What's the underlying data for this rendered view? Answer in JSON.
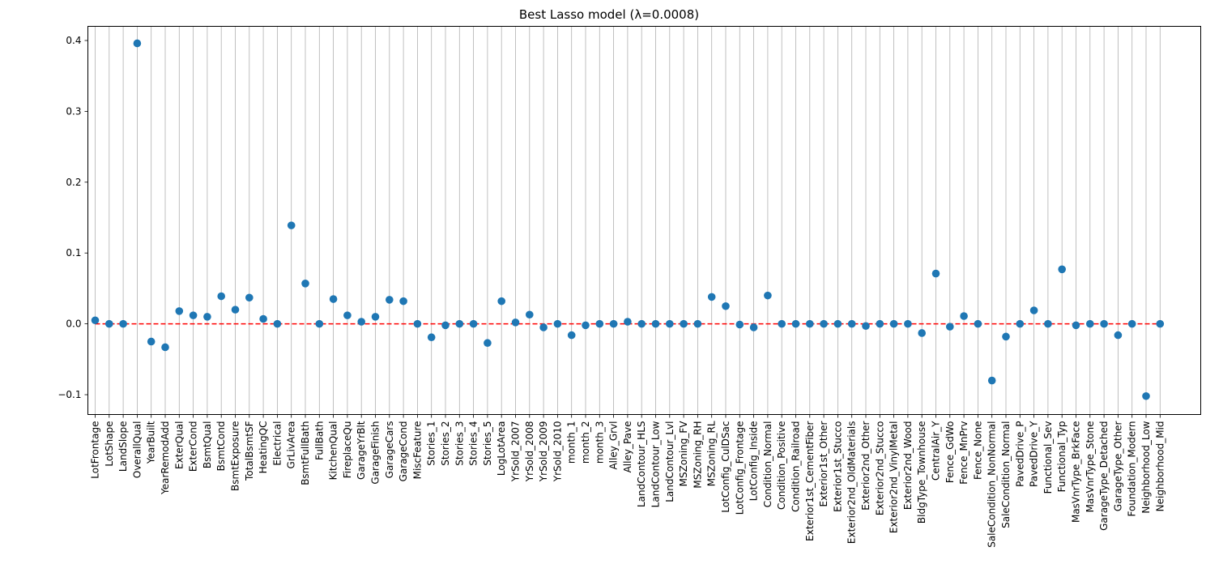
{
  "chart_data": {
    "type": "scatter",
    "title": "Best Lasso model (λ=0.0008)",
    "xlabel": "",
    "ylabel": "",
    "ylim": [
      -0.128,
      0.42
    ],
    "yticks": [
      -0.1,
      0.0,
      0.1,
      0.2,
      0.3,
      0.4
    ],
    "ytick_labels": [
      "−0.1",
      "0.0",
      "0.1",
      "0.2",
      "0.3",
      "0.4"
    ],
    "grid": "vertical",
    "reference_line": {
      "y": 0.0,
      "color": "#ff0000",
      "style": "dashed"
    },
    "point_color": "#1f77b4",
    "categories": [
      "LotFrontage",
      "LotShape",
      "LandSlope",
      "OverallQual",
      "YearBuilt",
      "YearRemodAdd",
      "ExterQual",
      "ExterCond",
      "BsmtQual",
      "BsmtCond",
      "BsmtExposure",
      "TotalBsmtSF",
      "HeatingQC",
      "Electrical",
      "GrLivArea",
      "BsmtFullBath",
      "FullBath",
      "KitchenQual",
      "FireplaceQu",
      "GarageYrBlt",
      "GarageFinish",
      "GarageCars",
      "GarageCond",
      "MiscFeature",
      "Stories_1",
      "Stories_2",
      "Stories_3",
      "Stories_4",
      "Stories_5",
      "LogLotArea",
      "YrSold_2007",
      "YrSold_2008",
      "YrSold_2009",
      "YrSold_2010",
      "month_1",
      "month_2",
      "month_3",
      "Alley_Grvl",
      "Alley_Pave",
      "LandContour_HLS",
      "LandContour_Low",
      "LandContour_Lvl",
      "MSZoning_FV",
      "MSZoning_RH",
      "MSZoning_RL",
      "LotConfig_CulDSac",
      "LotConfig_Frontage",
      "LotConfig_Inside",
      "Condition_Normal",
      "Condition_Positive",
      "Condition_Railroad",
      "Exterior1st_CementFiber",
      "Exterior1st_Other",
      "Exterior1st_Stucco",
      "Exterior2nd_OldMaterials",
      "Exterior2nd_Other",
      "Exterior2nd_Stucco",
      "Exterior2nd_VinylMetal",
      "Exterior2nd_Wood",
      "BldgType_Townhouse",
      "CentralAir_Y",
      "Fence_GdWo",
      "Fence_MnPrv",
      "Fence_None",
      "SaleCondition_NonNormal",
      "SaleCondition_Normal",
      "PavedDrive_P",
      "PavedDrive_Y",
      "Functional_Sev",
      "Functional_Typ",
      "MasVnrType_BrkFace",
      "MasVnrType_Stone",
      "GarageType_Detached",
      "GarageType_Other",
      "Foundation_Modern",
      "Neighborhood_Low",
      "Neighborhood_Mid"
    ],
    "values": [
      0.005,
      0.0,
      0.0,
      0.396,
      -0.025,
      -0.033,
      0.018,
      0.012,
      0.01,
      0.039,
      0.02,
      0.037,
      0.007,
      0.0,
      0.139,
      0.057,
      0.0,
      0.035,
      0.012,
      0.003,
      0.01,
      0.034,
      0.032,
      0.0,
      -0.019,
      -0.002,
      0.0,
      0.0,
      -0.027,
      0.032,
      0.002,
      0.013,
      -0.005,
      0.0,
      -0.016,
      -0.002,
      0.0,
      0.0,
      0.003,
      0.0,
      0.0,
      0.0,
      0.0,
      0.0,
      0.038,
      0.025,
      -0.001,
      -0.005,
      0.04,
      0.0,
      0.0,
      0.0,
      0.0,
      0.0,
      0.0,
      -0.003,
      0.0,
      0.0,
      0.0,
      -0.013,
      0.071,
      -0.004,
      0.011,
      0.0,
      -0.08,
      -0.018,
      0.0,
      0.019,
      0.0,
      0.077,
      -0.002,
      0.0,
      0.0,
      -0.016,
      0.0,
      -0.102,
      0.0
    ]
  }
}
